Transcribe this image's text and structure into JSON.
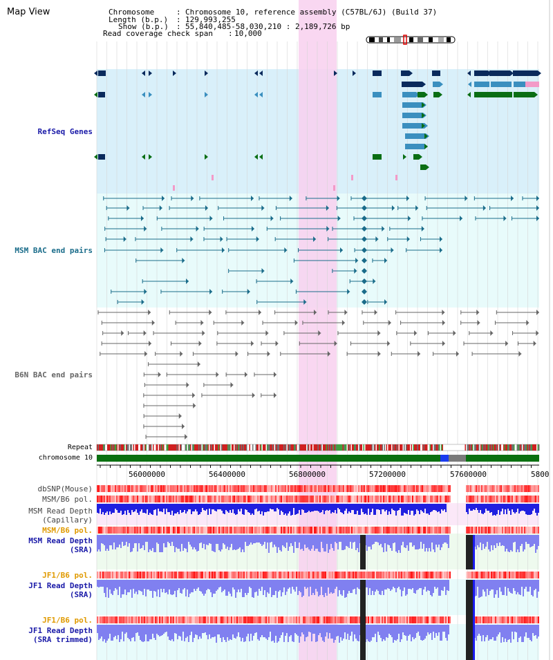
{
  "page": {
    "title": "Map View"
  },
  "header": {
    "chromosome_label": "Chromosome",
    "chromosome_value": "Chromosome 10, reference assembly (C57BL/6J) (Build 37)",
    "length_label": "Length (b.p.)",
    "length_value": "129,993,255",
    "show_label": "Show (b.p.)",
    "show_value": "55,840,485-58,030,210 : 2,189,726 bp",
    "coverage_label": "Read coverage check span",
    "coverage_value": "10,000",
    "separator": ":"
  },
  "tracks": {
    "refseq": "RefSeq Genes",
    "msm_bac": "MSM BAC end pairs",
    "b6n_bac": "B6N BAC end pairs",
    "repeat": "Repeat",
    "chromosome": "chromosome 10",
    "dbsnp": "dbSNP(Mouse)",
    "msm_b6_pol": "MSM/B6 pol.",
    "msm_depth_cap_1": "MSM Read Depth",
    "msm_depth_cap_2": "(Capillary)",
    "msm_b6_pol_2": "MSM/B6 pol.",
    "msm_depth_sra_1": "MSM Read Depth",
    "msm_depth_sra_2": "(SRA)",
    "jf1_b6_pol": "JF1/B6 pol.",
    "jf1_depth_sra_1": "JF1 Read Depth",
    "jf1_depth_sra_2": "(SRA)",
    "jf1_b6_pol_2": "JF1/B6 pol.",
    "jf1_depth_trim_1": "JF1 Read Depth",
    "jf1_depth_trim_2": "(SRA trimmed)"
  },
  "axis": {
    "ticks": [
      "56000000",
      "56400000",
      "56800000",
      "57200000",
      "57600000",
      "5800"
    ]
  },
  "colors": {
    "refseq_bg": "#d9f0fa",
    "msm_bac_bg": "#e8fbfb",
    "highlight": "#f8d0ee",
    "gene_navy": "#0a2a5c",
    "gene_blue": "#3a8fbf",
    "gene_green": "#0a6e14",
    "gene_pink": "#f39ac8",
    "msm_bac_line": "#1a6c8a",
    "b6n_bac_line": "#666666",
    "chromosome_green": "#0a7010",
    "snp_red": "#f06060",
    "depth_blue": "#2020e0",
    "depth_light_blue": "#8080f0",
    "label_blue": "#1a1aa8",
    "label_teal": "#1a6c8a",
    "label_orange": "#e09a00"
  }
}
